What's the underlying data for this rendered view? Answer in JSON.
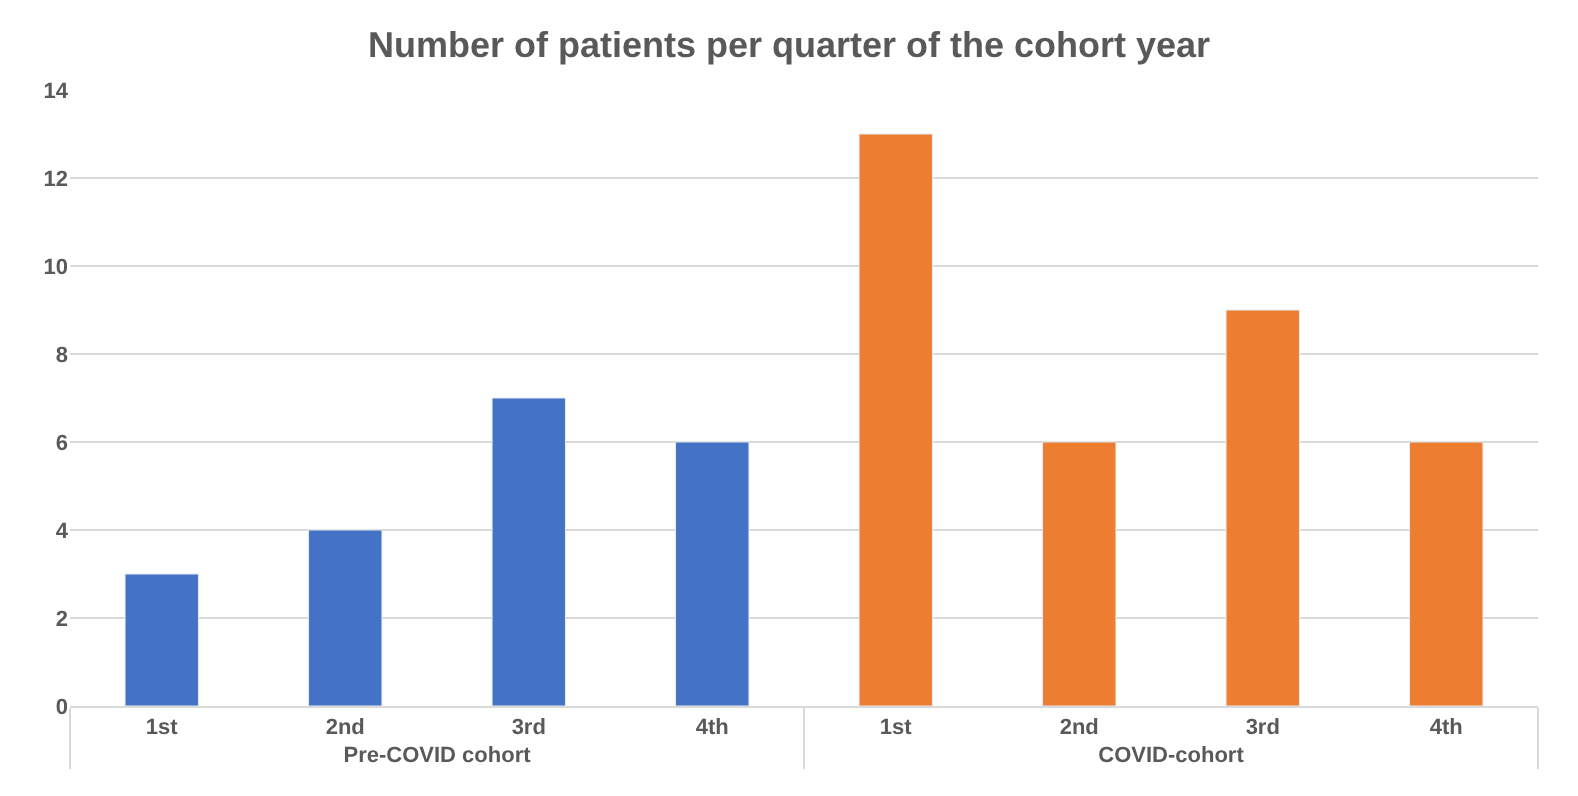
{
  "chart_data": {
    "type": "bar",
    "title": "Number of patients per quarter of the cohort year",
    "categories": [
      "1st",
      "2nd",
      "3rd",
      "4th",
      "1st",
      "2nd",
      "3rd",
      "4th"
    ],
    "series": [
      {
        "name": "Pre-COVID cohort",
        "color": "#4472c4",
        "values": [
          3,
          4,
          7,
          6,
          null,
          null,
          null,
          null
        ]
      },
      {
        "name": "COVID-cohort",
        "color": "#ed7d31",
        "values": [
          null,
          null,
          null,
          null,
          13,
          6,
          9,
          6
        ]
      }
    ],
    "ylim": [
      0,
      14
    ],
    "yticks": [
      0,
      2,
      4,
      6,
      8,
      10,
      12,
      14
    ],
    "grid": "y",
    "legend": false
  }
}
